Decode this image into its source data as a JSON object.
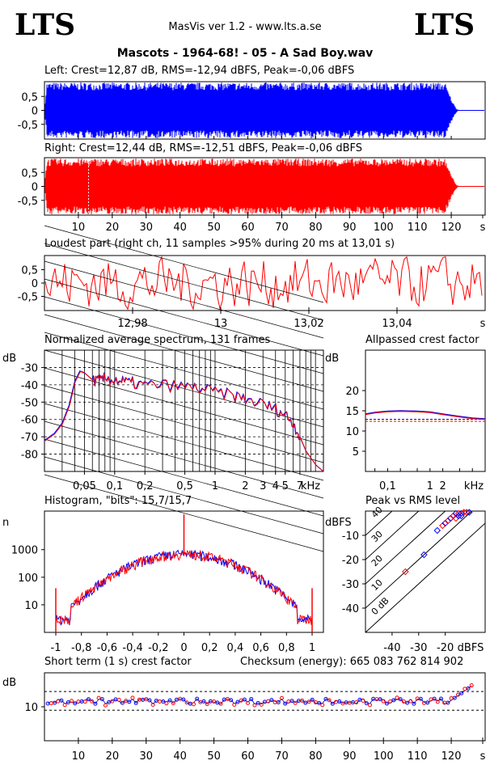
{
  "header": {
    "logo_left": "LTS",
    "logo_right": "LTS",
    "app": "MasVis ver 1.2 - www.lts.a.se",
    "file": "Mascots - 1964-68! - 05 - A Sad Boy.wav"
  },
  "colors": {
    "left": "#0000ff",
    "right": "#ff0000",
    "pair": "#8000a0"
  },
  "chart_data": [
    {
      "id": "left_wave",
      "type": "area",
      "title": "Left: Crest=12,87 dB, RMS=-12,94 dBFS, Peak=-0,06 dBFS",
      "x_range": [
        0,
        130
      ],
      "ylim": [
        -1,
        1
      ],
      "y_ticks": [
        "0,5",
        "0",
        "-0,5"
      ],
      "duration_s": 122,
      "envelope_peak": 0.99
    },
    {
      "id": "right_wave",
      "type": "area",
      "title": "Right: Crest=12,44 dB, RMS=-12,51 dBFS, Peak=-0,06 dBFS",
      "x_range": [
        0,
        130
      ],
      "ylim": [
        -1,
        1
      ],
      "y_ticks": [
        "0,5",
        "0",
        "-0,5"
      ],
      "x_ticks": [
        "10",
        "20",
        "30",
        "40",
        "50",
        "60",
        "70",
        "80",
        "90",
        "100",
        "110",
        "120",
        "s"
      ],
      "marker_s": 13.01,
      "duration_s": 122
    },
    {
      "id": "loudest",
      "type": "line",
      "title": "Loudest part (right ch, 11 samples >95% during 20 ms at 13,01 s)",
      "x_range": [
        12.96,
        13.06
      ],
      "ylim": [
        -1,
        1
      ],
      "y_ticks": [
        "0,5",
        "0",
        "-0,5"
      ],
      "x_ticks": [
        "12,98",
        "13",
        "13,02",
        "13,04",
        "s"
      ]
    },
    {
      "id": "spectrum",
      "type": "line",
      "title": "Normalized average spectrum, 131 frames",
      "ylabel": "dB",
      "xlabel": "kHz",
      "x_ticks": [
        "0,05",
        "0,1",
        "0,2",
        "0,5",
        "1",
        "2",
        "3",
        "4",
        "5",
        "7",
        "kHz"
      ],
      "y_ticks": [
        "-30",
        "-40",
        "-50",
        "-60",
        "-70",
        "-80"
      ],
      "xlim_khz": [
        0.02,
        12
      ],
      "ylim_db": [
        -90,
        -20
      ],
      "points": [
        [
          0.02,
          -72
        ],
        [
          0.025,
          -68
        ],
        [
          0.03,
          -62
        ],
        [
          0.035,
          -52
        ],
        [
          0.04,
          -38
        ],
        [
          0.045,
          -32
        ],
        [
          0.05,
          -33
        ],
        [
          0.06,
          -37
        ],
        [
          0.07,
          -38
        ],
        [
          0.08,
          -36
        ],
        [
          0.1,
          -37
        ],
        [
          0.12,
          -38
        ],
        [
          0.15,
          -39
        ],
        [
          0.2,
          -40
        ],
        [
          0.3,
          -40
        ],
        [
          0.5,
          -41
        ],
        [
          0.7,
          -42
        ],
        [
          1,
          -44
        ],
        [
          1.5,
          -46
        ],
        [
          2,
          -48
        ],
        [
          3,
          -51
        ],
        [
          4,
          -54
        ],
        [
          5,
          -57
        ],
        [
          6,
          -62
        ],
        [
          7,
          -70
        ],
        [
          8,
          -78
        ],
        [
          10,
          -86
        ],
        [
          12,
          -90
        ]
      ]
    },
    {
      "id": "allpass",
      "type": "line",
      "title": "Allpassed crest factor",
      "ylabel": "dB",
      "xlabel": "kHz",
      "x_ticks": [
        "0,1",
        "1",
        "2",
        "kHz"
      ],
      "y_ticks": [
        "20",
        "15",
        "10",
        "5"
      ],
      "ylim_db": [
        0,
        30
      ],
      "xlim_khz": [
        0.03,
        20
      ],
      "ref_lines_db": [
        12.9,
        12.4
      ],
      "points": [
        [
          0.03,
          14.2
        ],
        [
          0.05,
          14.6
        ],
        [
          0.1,
          14.9
        ],
        [
          0.2,
          15.0
        ],
        [
          0.5,
          14.9
        ],
        [
          1,
          14.7
        ],
        [
          2,
          14.2
        ],
        [
          5,
          13.6
        ],
        [
          10,
          13.2
        ],
        [
          20,
          13.0
        ]
      ]
    },
    {
      "id": "histogram",
      "type": "bar",
      "title": "Histogram, \"bits\": 15,7/15,7",
      "ylabel": "n",
      "x_ticks": [
        "-1",
        "-0,8",
        "-0,6",
        "-0,4",
        "-0,2",
        "0",
        "0,2",
        "0,4",
        "0,6",
        "0,8",
        "1"
      ],
      "y_ticks": [
        "1000",
        "100",
        "10"
      ],
      "xlim": [
        -1,
        1
      ],
      "ylog_range": [
        1,
        10000
      ]
    },
    {
      "id": "peak_vs_rms",
      "type": "scatter",
      "title": "Peak vs RMS level",
      "ylabel": "dBFS",
      "xlabel": "dBFS",
      "x_ticks": [
        "-40",
        "-30",
        "-20",
        "dBFS"
      ],
      "y_ticks": [
        "-10",
        "-20",
        "-30",
        "-40"
      ],
      "xlim": [
        -50,
        -5
      ],
      "ylim": [
        -50,
        0
      ],
      "diag_labels": [
        "40",
        "30",
        "20",
        "10",
        "0 dB"
      ],
      "points": [
        [
          -28,
          -18
        ],
        [
          -35,
          -25
        ],
        [
          -23,
          -8
        ],
        [
          -21,
          -6
        ],
        [
          -20,
          -5
        ],
        [
          -19,
          -4
        ],
        [
          -18,
          -3
        ],
        [
          -17,
          -2
        ],
        [
          -16,
          -1
        ],
        [
          -15,
          -1
        ],
        [
          -14,
          -1
        ],
        [
          -13,
          -0.5
        ],
        [
          -14,
          -2
        ],
        [
          -16,
          -3
        ],
        [
          -15,
          -2
        ],
        [
          -12,
          -0.5
        ],
        [
          -11,
          -0.5
        ]
      ]
    },
    {
      "id": "short_term",
      "type": "scatter",
      "title": "Short term (1 s) crest factor",
      "checksum": "Checksum (energy):   665 083 762 814 902",
      "ylabel": "dB",
      "y_ticks": [
        "10"
      ],
      "x_ticks": [
        "10",
        "20",
        "30",
        "40",
        "50",
        "60",
        "70",
        "80",
        "90",
        "100",
        "110",
        "120",
        "s"
      ],
      "xlim": [
        0,
        130
      ],
      "ylim_db": [
        0,
        20
      ],
      "ref_lines_db": [
        14.5,
        9
      ]
    }
  ]
}
